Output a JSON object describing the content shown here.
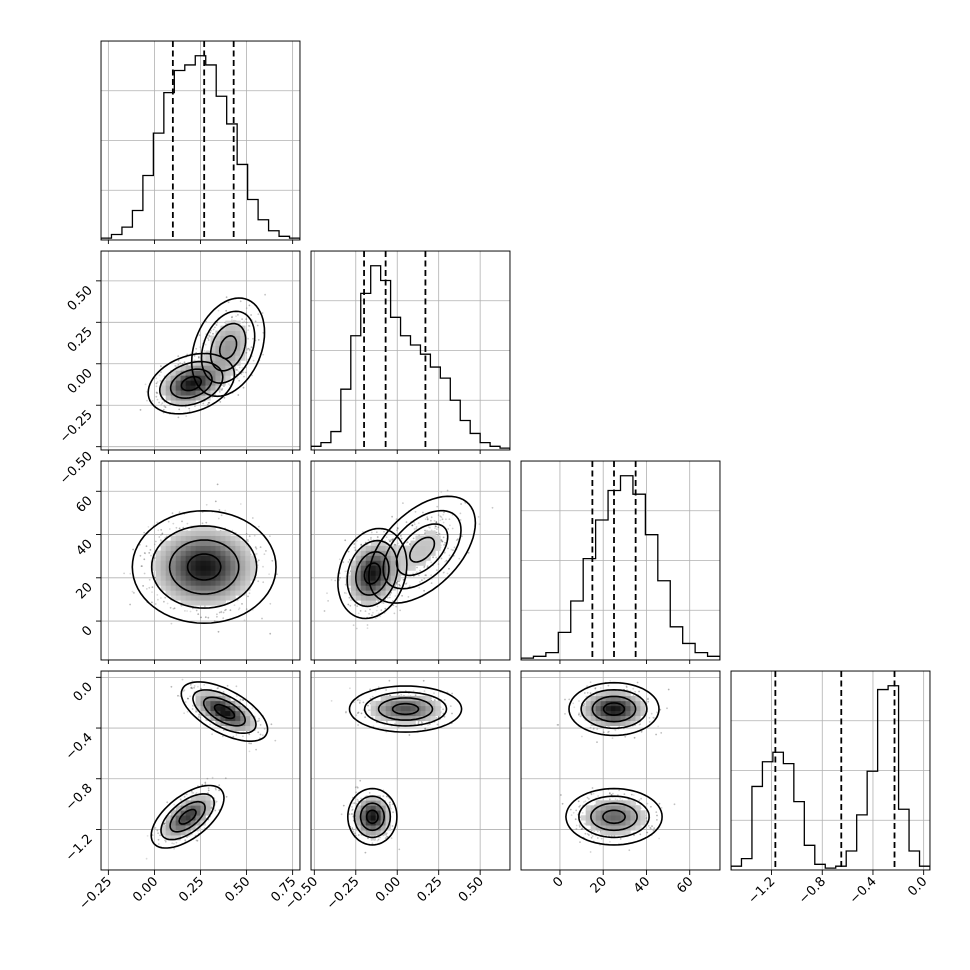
{
  "chart_data": {
    "type": "corner",
    "grid": true,
    "parameters": [
      {
        "index": 0,
        "range": [
          -0.29,
          0.79
        ],
        "ticks": [
          "−0.25",
          "0.00",
          "0.25",
          "0.50",
          "0.75"
        ],
        "tick_values": [
          -0.25,
          0.0,
          0.25,
          0.5,
          0.75
        ],
        "quantiles": [
          0.1,
          0.27,
          0.43
        ]
      },
      {
        "index": 1,
        "range": [
          -0.52,
          0.68
        ],
        "ticks": [
          "−0.50",
          "−0.25",
          "0.00",
          "0.25",
          "0.50"
        ],
        "tick_values": [
          -0.5,
          -0.25,
          0.0,
          0.25,
          0.5
        ],
        "quantiles": [
          -0.2,
          -0.07,
          0.17
        ]
      },
      {
        "index": 2,
        "range": [
          -18,
          74
        ],
        "ticks": [
          "0",
          "20",
          "40",
          "60"
        ],
        "tick_values": [
          0,
          20,
          40,
          60
        ],
        "quantiles": [
          15,
          25,
          35
        ]
      },
      {
        "index": 3,
        "range": [
          -1.52,
          0.05
        ],
        "ticks": [
          "−1.2",
          "−0.8",
          "−0.4",
          "0.0"
        ],
        "tick_values": [
          -1.2,
          -0.8,
          -0.4,
          0.0
        ],
        "quantiles": [
          -1.17,
          -0.65,
          -0.23
        ]
      }
    ],
    "histograms": [
      {
        "param": 0,
        "counts": [
          1,
          3,
          7,
          16,
          35,
          58,
          80,
          92,
          95,
          100,
          95,
          78,
          63,
          41,
          22,
          11,
          5,
          2,
          1
        ]
      },
      {
        "param": 1,
        "counts": [
          2,
          4,
          10,
          33,
          62,
          85,
          100,
          92,
          72,
          62,
          57,
          52,
          45,
          39,
          27,
          16,
          9,
          4,
          2,
          1
        ]
      },
      {
        "param": 2,
        "counts": [
          1,
          2,
          4,
          15,
          32,
          55,
          76,
          92,
          100,
          90,
          68,
          43,
          18,
          9,
          4,
          2
        ]
      },
      {
        "param": 3,
        "counts": [
          2,
          6,
          44,
          57,
          62,
          56,
          36,
          13,
          3,
          1,
          2,
          10,
          29,
          52,
          95,
          97,
          32,
          10,
          2
        ]
      }
    ],
    "pairs": [
      {
        "x": 0,
        "y": 1,
        "components": [
          {
            "weight": 0.6,
            "mx": 0.2,
            "my": -0.12,
            "sx": 0.09,
            "sy": 0.07,
            "rho": 0.3
          },
          {
            "weight": 0.4,
            "mx": 0.4,
            "my": 0.1,
            "sx": 0.08,
            "sy": 0.12,
            "rho": 0.3
          }
        ]
      },
      {
        "x": 0,
        "y": 2,
        "components": [
          {
            "weight": 1.0,
            "mx": 0.27,
            "my": 25,
            "sx": 0.15,
            "sy": 10,
            "rho": 0.0
          }
        ]
      },
      {
        "x": 1,
        "y": 2,
        "components": [
          {
            "weight": 0.65,
            "mx": -0.15,
            "my": 22,
            "sx": 0.08,
            "sy": 8,
            "rho": 0.2
          },
          {
            "weight": 0.35,
            "mx": 0.15,
            "my": 33,
            "sx": 0.13,
            "sy": 10,
            "rho": 0.5
          }
        ]
      },
      {
        "x": 0,
        "y": 3,
        "components": [
          {
            "weight": 0.55,
            "mx": 0.38,
            "my": -0.27,
            "sx": 0.09,
            "sy": 0.09,
            "rho": -0.6
          },
          {
            "weight": 0.45,
            "mx": 0.18,
            "my": -1.1,
            "sx": 0.08,
            "sy": 0.1,
            "rho": 0.6
          }
        ]
      },
      {
        "x": 1,
        "y": 3,
        "components": [
          {
            "weight": 0.55,
            "mx": 0.05,
            "my": -0.25,
            "sx": 0.13,
            "sy": 0.07,
            "rho": 0.0
          },
          {
            "weight": 0.45,
            "mx": -0.15,
            "my": -1.1,
            "sx": 0.06,
            "sy": 0.09,
            "rho": 0.0
          }
        ]
      },
      {
        "x": 2,
        "y": 3,
        "components": [
          {
            "weight": 0.55,
            "mx": 25,
            "my": -0.25,
            "sx": 8,
            "sy": 0.08,
            "rho": 0.0
          },
          {
            "weight": 0.45,
            "mx": 25,
            "my": -1.1,
            "sx": 9,
            "sy": 0.09,
            "rho": 0.0
          }
        ]
      }
    ]
  }
}
